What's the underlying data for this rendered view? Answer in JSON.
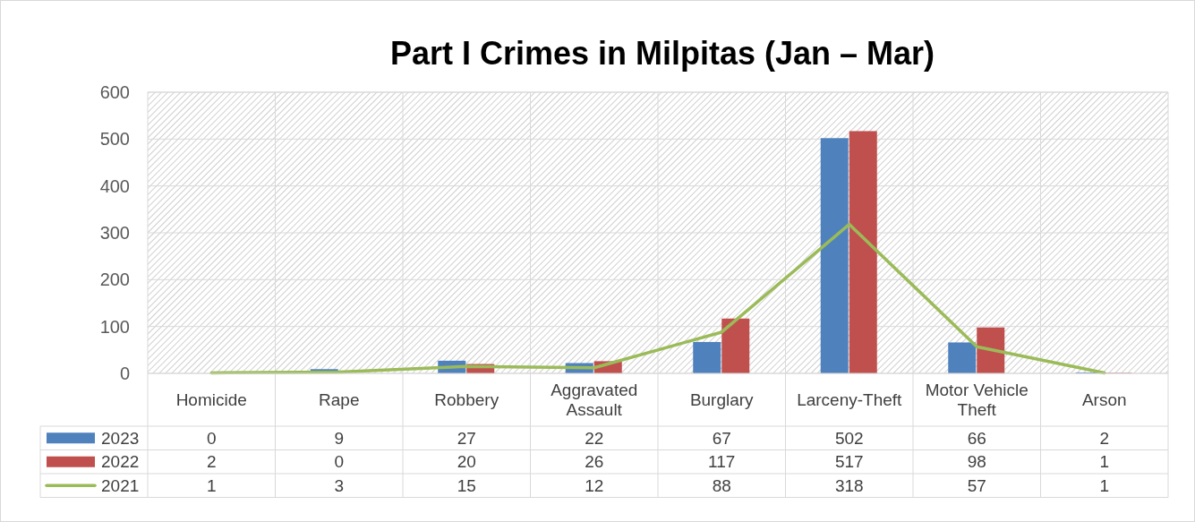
{
  "chart_data": {
    "type": "bar",
    "title": "Part I Crimes in Milpitas (Jan – Mar)",
    "categories": [
      "Homicide",
      "Rape",
      "Robbery",
      "Aggravated Assault",
      "Burglary",
      "Larceny-Theft",
      "Motor Vehicle Theft",
      "Arson"
    ],
    "series": [
      {
        "name": "2023",
        "color": "#4f81bd",
        "values": [
          0,
          9,
          27,
          22,
          67,
          502,
          66,
          2
        ]
      },
      {
        "name": "2022",
        "color": "#c0504d",
        "values": [
          2,
          0,
          20,
          26,
          117,
          517,
          98,
          1
        ]
      },
      {
        "name": "2021",
        "type": "line",
        "color": "#9bbb59",
        "values": [
          1,
          3,
          15,
          12,
          88,
          318,
          57,
          1
        ]
      }
    ],
    "ylim": [
      0,
      600
    ],
    "yticks": [
      0,
      100,
      200,
      300,
      400,
      500,
      600
    ],
    "grid": "y",
    "legend": "bottom",
    "data_labels": true,
    "marker": "none"
  }
}
